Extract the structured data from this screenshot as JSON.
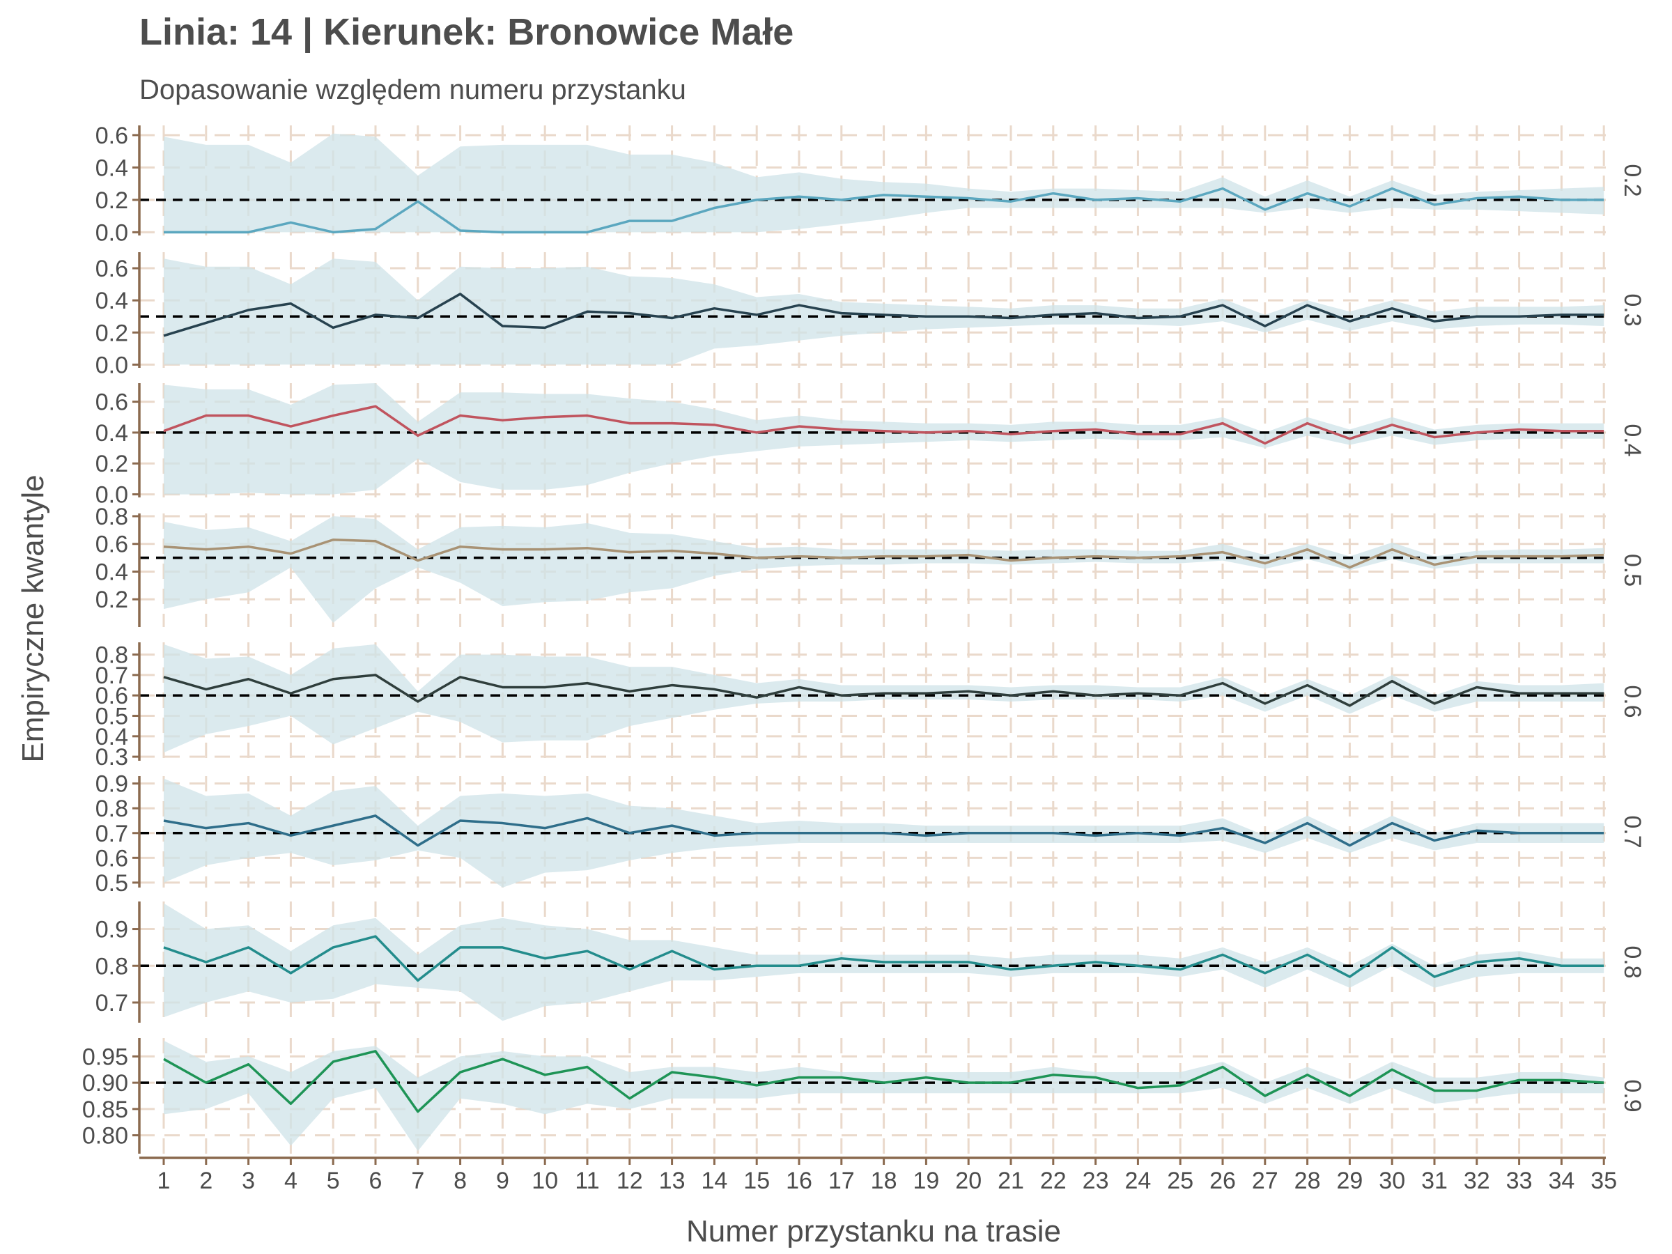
{
  "chart_data": {
    "type": "line",
    "title": "Linia: 14 | Kierunek: Bronowice Małe",
    "subtitle": "Dopasowanie względem numeru przystanku",
    "xlabel": "Numer przystanku na trasie",
    "ylabel": "Empiryczne kwantyle",
    "x": [
      1,
      2,
      3,
      4,
      5,
      6,
      7,
      8,
      9,
      10,
      11,
      12,
      13,
      14,
      15,
      16,
      17,
      18,
      19,
      20,
      21,
      22,
      23,
      24,
      25,
      26,
      27,
      28,
      29,
      30,
      31,
      32,
      33,
      34,
      35
    ],
    "grid": true,
    "colors": {
      "band": "#cfe3e8",
      "grid": "#ead9cb",
      "axis": "#8b6a4f",
      "reference": "#000000"
    },
    "panels": [
      {
        "strip": "0.2",
        "reference": 0.2,
        "color": "#5ba7bf",
        "ylim": [
          -0.02,
          0.66
        ],
        "yticks": [
          0.0,
          0.2,
          0.4,
          0.6
        ],
        "tick_decimals": 1,
        "values": [
          0.0,
          0.0,
          0.0,
          0.06,
          0.0,
          0.02,
          0.19,
          0.01,
          0.0,
          0.0,
          0.0,
          0.07,
          0.07,
          0.15,
          0.2,
          0.22,
          0.2,
          0.23,
          0.22,
          0.21,
          0.19,
          0.24,
          0.2,
          0.21,
          0.19,
          0.27,
          0.14,
          0.24,
          0.16,
          0.27,
          0.17,
          0.21,
          0.22,
          0.2,
          0.2
        ],
        "band_low": [
          0.0,
          0.0,
          0.0,
          0.0,
          0.0,
          0.0,
          0.0,
          0.0,
          0.0,
          0.0,
          0.0,
          0.0,
          0.0,
          0.0,
          0.0,
          0.02,
          0.05,
          0.08,
          0.12,
          0.15,
          0.15,
          0.15,
          0.15,
          0.15,
          0.15,
          0.15,
          0.12,
          0.15,
          0.12,
          0.15,
          0.14,
          0.14,
          0.13,
          0.12,
          0.11
        ],
        "band_high": [
          0.59,
          0.54,
          0.54,
          0.43,
          0.61,
          0.59,
          0.35,
          0.53,
          0.54,
          0.54,
          0.54,
          0.48,
          0.48,
          0.43,
          0.34,
          0.37,
          0.33,
          0.31,
          0.3,
          0.27,
          0.25,
          0.27,
          0.27,
          0.26,
          0.25,
          0.34,
          0.22,
          0.32,
          0.22,
          0.32,
          0.23,
          0.25,
          0.26,
          0.27,
          0.28
        ]
      },
      {
        "strip": "0.3",
        "reference": 0.3,
        "color": "#27424f",
        "ylim": [
          -0.02,
          0.7
        ],
        "yticks": [
          0.0,
          0.2,
          0.4,
          0.6
        ],
        "tick_decimals": 1,
        "values": [
          0.18,
          0.26,
          0.34,
          0.38,
          0.23,
          0.31,
          0.29,
          0.44,
          0.24,
          0.23,
          0.33,
          0.32,
          0.29,
          0.35,
          0.31,
          0.37,
          0.32,
          0.31,
          0.3,
          0.3,
          0.29,
          0.31,
          0.32,
          0.29,
          0.3,
          0.37,
          0.24,
          0.37,
          0.27,
          0.35,
          0.27,
          0.3,
          0.3,
          0.31,
          0.31
        ],
        "band_low": [
          0.0,
          0.0,
          0.0,
          0.0,
          0.0,
          0.0,
          0.0,
          0.0,
          0.0,
          0.0,
          0.0,
          0.0,
          0.0,
          0.1,
          0.12,
          0.15,
          0.18,
          0.2,
          0.22,
          0.23,
          0.24,
          0.25,
          0.25,
          0.25,
          0.24,
          0.27,
          0.2,
          0.28,
          0.21,
          0.27,
          0.22,
          0.24,
          0.25,
          0.25,
          0.24
        ],
        "band_high": [
          0.66,
          0.61,
          0.61,
          0.5,
          0.66,
          0.64,
          0.4,
          0.61,
          0.6,
          0.6,
          0.61,
          0.55,
          0.54,
          0.5,
          0.42,
          0.44,
          0.39,
          0.38,
          0.37,
          0.36,
          0.35,
          0.37,
          0.37,
          0.35,
          0.35,
          0.41,
          0.31,
          0.4,
          0.33,
          0.4,
          0.33,
          0.36,
          0.36,
          0.36,
          0.37
        ]
      },
      {
        "strip": "0.4",
        "reference": 0.4,
        "color": "#c0545e",
        "ylim": [
          -0.02,
          0.72
        ],
        "yticks": [
          0.0,
          0.2,
          0.4,
          0.6
        ],
        "tick_decimals": 1,
        "values": [
          0.41,
          0.51,
          0.51,
          0.44,
          0.51,
          0.57,
          0.38,
          0.51,
          0.48,
          0.5,
          0.51,
          0.46,
          0.46,
          0.45,
          0.4,
          0.44,
          0.42,
          0.41,
          0.4,
          0.41,
          0.39,
          0.41,
          0.42,
          0.39,
          0.39,
          0.46,
          0.33,
          0.46,
          0.36,
          0.45,
          0.37,
          0.4,
          0.42,
          0.41,
          0.41
        ],
        "band_low": [
          0.0,
          0.0,
          0.01,
          0.0,
          0.0,
          0.03,
          0.23,
          0.08,
          0.03,
          0.03,
          0.06,
          0.14,
          0.2,
          0.25,
          0.28,
          0.31,
          0.32,
          0.33,
          0.34,
          0.35,
          0.34,
          0.35,
          0.36,
          0.35,
          0.35,
          0.37,
          0.3,
          0.38,
          0.32,
          0.38,
          0.32,
          0.35,
          0.36,
          0.36,
          0.36
        ],
        "band_high": [
          0.71,
          0.68,
          0.68,
          0.58,
          0.71,
          0.72,
          0.47,
          0.66,
          0.66,
          0.65,
          0.65,
          0.62,
          0.6,
          0.55,
          0.48,
          0.51,
          0.48,
          0.47,
          0.46,
          0.46,
          0.45,
          0.47,
          0.47,
          0.45,
          0.45,
          0.5,
          0.4,
          0.5,
          0.42,
          0.5,
          0.42,
          0.45,
          0.46,
          0.46,
          0.46
        ]
      },
      {
        "strip": "0.5",
        "reference": 0.5,
        "color": "#a89274",
        "ylim": [
          0.0,
          0.82
        ],
        "yticks": [
          0.2,
          0.4,
          0.6,
          0.8
        ],
        "tick_decimals": 1,
        "values": [
          0.58,
          0.56,
          0.58,
          0.53,
          0.63,
          0.62,
          0.48,
          0.58,
          0.56,
          0.56,
          0.57,
          0.54,
          0.55,
          0.53,
          0.5,
          0.51,
          0.5,
          0.51,
          0.51,
          0.52,
          0.48,
          0.5,
          0.51,
          0.5,
          0.51,
          0.54,
          0.46,
          0.56,
          0.43,
          0.56,
          0.45,
          0.51,
          0.51,
          0.51,
          0.52
        ],
        "band_low": [
          0.13,
          0.2,
          0.25,
          0.43,
          0.03,
          0.28,
          0.43,
          0.32,
          0.15,
          0.18,
          0.19,
          0.25,
          0.28,
          0.37,
          0.42,
          0.44,
          0.45,
          0.45,
          0.46,
          0.46,
          0.45,
          0.46,
          0.47,
          0.46,
          0.46,
          0.48,
          0.42,
          0.49,
          0.41,
          0.49,
          0.42,
          0.46,
          0.46,
          0.46,
          0.46
        ],
        "band_high": [
          0.76,
          0.7,
          0.72,
          0.62,
          0.8,
          0.78,
          0.56,
          0.72,
          0.73,
          0.72,
          0.75,
          0.68,
          0.67,
          0.62,
          0.57,
          0.58,
          0.56,
          0.56,
          0.56,
          0.56,
          0.55,
          0.56,
          0.56,
          0.55,
          0.55,
          0.6,
          0.52,
          0.6,
          0.51,
          0.61,
          0.51,
          0.55,
          0.56,
          0.56,
          0.57
        ]
      },
      {
        "strip": "0.6",
        "reference": 0.6,
        "color": "#2f3e3c",
        "ylim": [
          0.28,
          0.86
        ],
        "yticks": [
          0.3,
          0.4,
          0.5,
          0.6,
          0.7,
          0.8
        ],
        "tick_decimals": 1,
        "values": [
          0.69,
          0.63,
          0.68,
          0.61,
          0.68,
          0.7,
          0.57,
          0.69,
          0.64,
          0.64,
          0.66,
          0.62,
          0.65,
          0.63,
          0.59,
          0.64,
          0.6,
          0.61,
          0.61,
          0.62,
          0.6,
          0.62,
          0.6,
          0.61,
          0.6,
          0.66,
          0.56,
          0.65,
          0.55,
          0.67,
          0.56,
          0.64,
          0.61,
          0.61,
          0.61
        ],
        "band_low": [
          0.32,
          0.41,
          0.45,
          0.5,
          0.36,
          0.44,
          0.52,
          0.47,
          0.37,
          0.38,
          0.38,
          0.45,
          0.49,
          0.53,
          0.56,
          0.57,
          0.57,
          0.58,
          0.58,
          0.58,
          0.57,
          0.58,
          0.58,
          0.58,
          0.57,
          0.6,
          0.52,
          0.6,
          0.51,
          0.6,
          0.52,
          0.57,
          0.57,
          0.57,
          0.57
        ],
        "band_high": [
          0.85,
          0.78,
          0.79,
          0.7,
          0.83,
          0.85,
          0.62,
          0.8,
          0.8,
          0.79,
          0.79,
          0.74,
          0.74,
          0.7,
          0.66,
          0.68,
          0.65,
          0.65,
          0.65,
          0.65,
          0.64,
          0.65,
          0.65,
          0.64,
          0.64,
          0.69,
          0.6,
          0.68,
          0.6,
          0.7,
          0.6,
          0.67,
          0.65,
          0.65,
          0.66
        ]
      },
      {
        "strip": "0.7",
        "reference": 0.7,
        "color": "#2f6e8a",
        "ylim": [
          0.48,
          0.93
        ],
        "yticks": [
          0.5,
          0.6,
          0.7,
          0.8,
          0.9
        ],
        "tick_decimals": 1,
        "values": [
          0.75,
          0.72,
          0.74,
          0.69,
          0.73,
          0.77,
          0.65,
          0.75,
          0.74,
          0.72,
          0.76,
          0.7,
          0.73,
          0.69,
          0.7,
          0.7,
          0.7,
          0.7,
          0.69,
          0.7,
          0.7,
          0.7,
          0.69,
          0.7,
          0.69,
          0.72,
          0.66,
          0.74,
          0.65,
          0.74,
          0.67,
          0.71,
          0.7,
          0.7,
          0.7
        ],
        "band_low": [
          0.5,
          0.57,
          0.6,
          0.62,
          0.57,
          0.59,
          0.63,
          0.6,
          0.48,
          0.54,
          0.55,
          0.59,
          0.62,
          0.64,
          0.65,
          0.66,
          0.66,
          0.66,
          0.66,
          0.66,
          0.66,
          0.66,
          0.66,
          0.66,
          0.66,
          0.67,
          0.62,
          0.68,
          0.62,
          0.68,
          0.63,
          0.66,
          0.66,
          0.66,
          0.66
        ],
        "band_high": [
          0.92,
          0.85,
          0.86,
          0.77,
          0.87,
          0.89,
          0.73,
          0.85,
          0.86,
          0.85,
          0.86,
          0.81,
          0.8,
          0.77,
          0.74,
          0.75,
          0.74,
          0.74,
          0.73,
          0.73,
          0.73,
          0.73,
          0.73,
          0.73,
          0.73,
          0.76,
          0.69,
          0.77,
          0.69,
          0.77,
          0.7,
          0.74,
          0.74,
          0.74,
          0.74
        ]
      },
      {
        "strip": "0.8",
        "reference": 0.8,
        "color": "#238c8c",
        "ylim": [
          0.645,
          0.975
        ],
        "yticks": [
          0.7,
          0.8,
          0.9
        ],
        "tick_decimals": 1,
        "values": [
          0.85,
          0.81,
          0.85,
          0.78,
          0.85,
          0.88,
          0.76,
          0.85,
          0.85,
          0.82,
          0.84,
          0.79,
          0.84,
          0.79,
          0.8,
          0.8,
          0.82,
          0.81,
          0.81,
          0.81,
          0.79,
          0.8,
          0.81,
          0.8,
          0.79,
          0.83,
          0.78,
          0.83,
          0.77,
          0.85,
          0.77,
          0.81,
          0.82,
          0.8,
          0.8
        ],
        "band_low": [
          0.66,
          0.7,
          0.73,
          0.7,
          0.71,
          0.75,
          0.74,
          0.73,
          0.65,
          0.69,
          0.7,
          0.73,
          0.76,
          0.76,
          0.77,
          0.78,
          0.78,
          0.78,
          0.78,
          0.78,
          0.77,
          0.78,
          0.78,
          0.78,
          0.77,
          0.79,
          0.74,
          0.79,
          0.74,
          0.8,
          0.74,
          0.77,
          0.78,
          0.78,
          0.78
        ],
        "band_high": [
          0.97,
          0.9,
          0.91,
          0.84,
          0.91,
          0.93,
          0.83,
          0.91,
          0.93,
          0.91,
          0.9,
          0.87,
          0.87,
          0.85,
          0.83,
          0.83,
          0.83,
          0.83,
          0.83,
          0.83,
          0.82,
          0.83,
          0.83,
          0.83,
          0.82,
          0.85,
          0.81,
          0.85,
          0.8,
          0.86,
          0.8,
          0.83,
          0.84,
          0.82,
          0.82
        ]
      },
      {
        "strip": "0.9",
        "reference": 0.9,
        "color": "#1e9456",
        "ylim": [
          0.765,
          0.985
        ],
        "yticks": [
          0.8,
          0.85,
          0.9,
          0.95
        ],
        "tick_decimals": 2,
        "values": [
          0.945,
          0.9,
          0.935,
          0.86,
          0.94,
          0.96,
          0.845,
          0.92,
          0.945,
          0.915,
          0.93,
          0.87,
          0.92,
          0.91,
          0.895,
          0.91,
          0.91,
          0.9,
          0.91,
          0.9,
          0.9,
          0.915,
          0.91,
          0.89,
          0.895,
          0.93,
          0.875,
          0.915,
          0.875,
          0.925,
          0.885,
          0.885,
          0.905,
          0.905,
          0.9
        ],
        "band_low": [
          0.84,
          0.85,
          0.88,
          0.78,
          0.87,
          0.89,
          0.77,
          0.87,
          0.86,
          0.84,
          0.86,
          0.85,
          0.87,
          0.87,
          0.87,
          0.88,
          0.88,
          0.88,
          0.88,
          0.88,
          0.88,
          0.88,
          0.88,
          0.88,
          0.88,
          0.89,
          0.86,
          0.89,
          0.86,
          0.89,
          0.86,
          0.87,
          0.88,
          0.88,
          0.88
        ],
        "band_high": [
          0.98,
          0.94,
          0.95,
          0.92,
          0.96,
          0.97,
          0.91,
          0.95,
          0.96,
          0.95,
          0.95,
          0.92,
          0.93,
          0.93,
          0.92,
          0.93,
          0.92,
          0.92,
          0.92,
          0.92,
          0.92,
          0.93,
          0.92,
          0.92,
          0.92,
          0.94,
          0.9,
          0.93,
          0.9,
          0.94,
          0.91,
          0.91,
          0.92,
          0.92,
          0.91
        ]
      }
    ]
  }
}
